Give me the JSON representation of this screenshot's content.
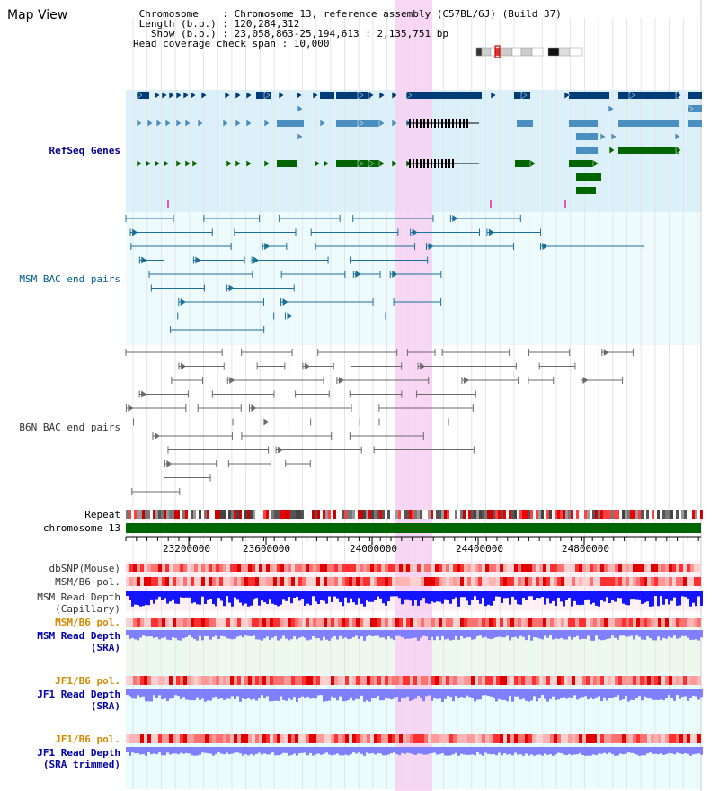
{
  "header": {
    "title": "Map View",
    "info_lines": [
      " Chromosome    : Chromosome 13, reference assembly (C57BL/6J) (Build 37)",
      " Length (b.p.) : 120,284,312",
      "   Show (b.p.) : 23,058,863-25,194,613 : 2,135,751 bp",
      "Read coverage check span : 10,000"
    ]
  },
  "tracks": {
    "refseq": "RefSeq Genes",
    "msm_bac": "MSM BAC end pairs",
    "b6n_bac": "B6N BAC end pairs",
    "repeat": "Repeat",
    "chromosome": "chromosome 13",
    "dbsnp": "dbSNP(Mouse)",
    "msm_b6_pol_1": "MSM/B6 pol.",
    "msm_read_depth_cap": "MSM Read Depth\n(Capillary)",
    "msm_b6_pol_2": "MSM/B6 pol.",
    "msm_read_depth_sra": "MSM Read Depth\n(SRA)",
    "jf1_b6_pol_1": "JF1/B6 pol.",
    "jf1_read_depth_sra": "JF1 Read Depth\n(SRA)",
    "jf1_b6_pol_2": "JF1/B6 pol.",
    "jf1_read_depth_trim": "JF1 Read Depth\n(SRA trimmed)"
  },
  "axis": {
    "ticks": [
      "23200000",
      "23600000",
      "24000000",
      "24400000",
      "24800000"
    ]
  },
  "colors": {
    "highlight": "#f7d0f2",
    "refseq_bg": "#dcf0fa",
    "bac_bg": "#eefbfd",
    "gene_dark": "#003c78",
    "gene_mid": "#4a8fbf",
    "gene_green": "#006400",
    "chromosome_bar": "#006600",
    "depth_blue": "#1414ff",
    "depth_light": "#7f7fff"
  }
}
